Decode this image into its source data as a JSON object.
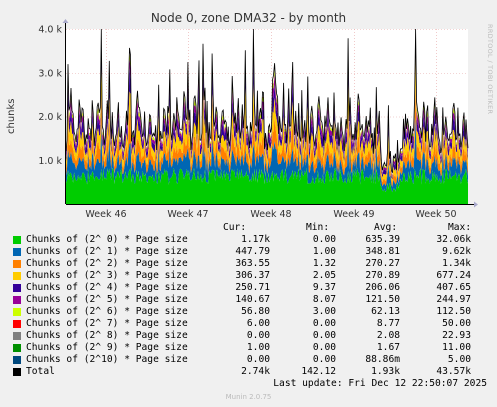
{
  "title": "Node 0, zone DMA32 - by month",
  "ylabel": "chunks",
  "side_text": "RRDTOOL / TOBI OETIKER",
  "footer": "Munin 2.0.75",
  "last_update": "Last update: Fri Dec 12 22:50:07 2025",
  "headers": {
    "cur": "Cur:",
    "min": "Min:",
    "avg": "Avg:",
    "max": "Max:"
  },
  "chart_data": {
    "type": "area",
    "title": "Node 0, zone DMA32 - by month",
    "ylabel": "chunks",
    "y_ticks": [
      "1.0 k",
      "2.0 k",
      "3.0 k",
      "4.0 k"
    ],
    "y_tick_values": [
      1000,
      2000,
      3000,
      4000
    ],
    "ylim": [
      0,
      4000
    ],
    "x_ticks": [
      "Week 46",
      "Week 47",
      "Week 48",
      "Week 49",
      "Week 50"
    ],
    "grid": true,
    "stacked": true,
    "series": [
      {
        "name": "Chunks of (2^ 0) * Page size",
        "color": "#00cc00",
        "cur": "1.17k",
        "min": "0.00",
        "avg": "635.39",
        "max": "32.06k",
        "avg_value": 635.39
      },
      {
        "name": "Chunks of (2^ 1) * Page size",
        "color": "#0066b3",
        "cur": "447.79",
        "min": "1.00",
        "avg": "348.81",
        "max": "9.62k",
        "avg_value": 348.81
      },
      {
        "name": "Chunks of (2^ 2) * Page size",
        "color": "#ff8000",
        "cur": "363.55",
        "min": "1.32",
        "avg": "270.27",
        "max": "1.34k",
        "avg_value": 270.27
      },
      {
        "name": "Chunks of (2^ 3) * Page size",
        "color": "#ffcc00",
        "cur": "306.37",
        "min": "2.05",
        "avg": "270.89",
        "max": "677.24",
        "avg_value": 270.89
      },
      {
        "name": "Chunks of (2^ 4) * Page size",
        "color": "#330099",
        "cur": "250.71",
        "min": "9.37",
        "avg": "206.06",
        "max": "407.65",
        "avg_value": 206.06
      },
      {
        "name": "Chunks of (2^ 5) * Page size",
        "color": "#990099",
        "cur": "140.67",
        "min": "8.07",
        "avg": "121.50",
        "max": "244.97",
        "avg_value": 121.5
      },
      {
        "name": "Chunks of (2^ 6) * Page size",
        "color": "#ccff00",
        "cur": "56.80",
        "min": "3.00",
        "avg": "62.13",
        "max": "112.50",
        "avg_value": 62.13
      },
      {
        "name": "Chunks of (2^ 7) * Page size",
        "color": "#ff0000",
        "cur": "6.00",
        "min": "0.00",
        "avg": "8.77",
        "max": "50.00",
        "avg_value": 8.77
      },
      {
        "name": "Chunks of (2^ 8) * Page size",
        "color": "#808080",
        "cur": "0.00",
        "min": "0.00",
        "avg": "2.08",
        "max": "22.93",
        "avg_value": 2.08
      },
      {
        "name": "Chunks of (2^ 9) * Page size",
        "color": "#008f00",
        "cur": "1.00",
        "min": "0.00",
        "avg": "1.67",
        "max": "11.00",
        "avg_value": 1.67
      },
      {
        "name": "Chunks of (2^10) * Page size",
        "color": "#00487d",
        "cur": "0.00",
        "min": "0.00",
        "avg": "88.86m",
        "max": "5.00",
        "avg_value": 0.08886
      },
      {
        "name": "Total",
        "color": "#000000",
        "cur": "2.74k",
        "min": "142.12",
        "avg": "1.93k",
        "max": "43.57k",
        "avg_value": 1930
      }
    ]
  }
}
